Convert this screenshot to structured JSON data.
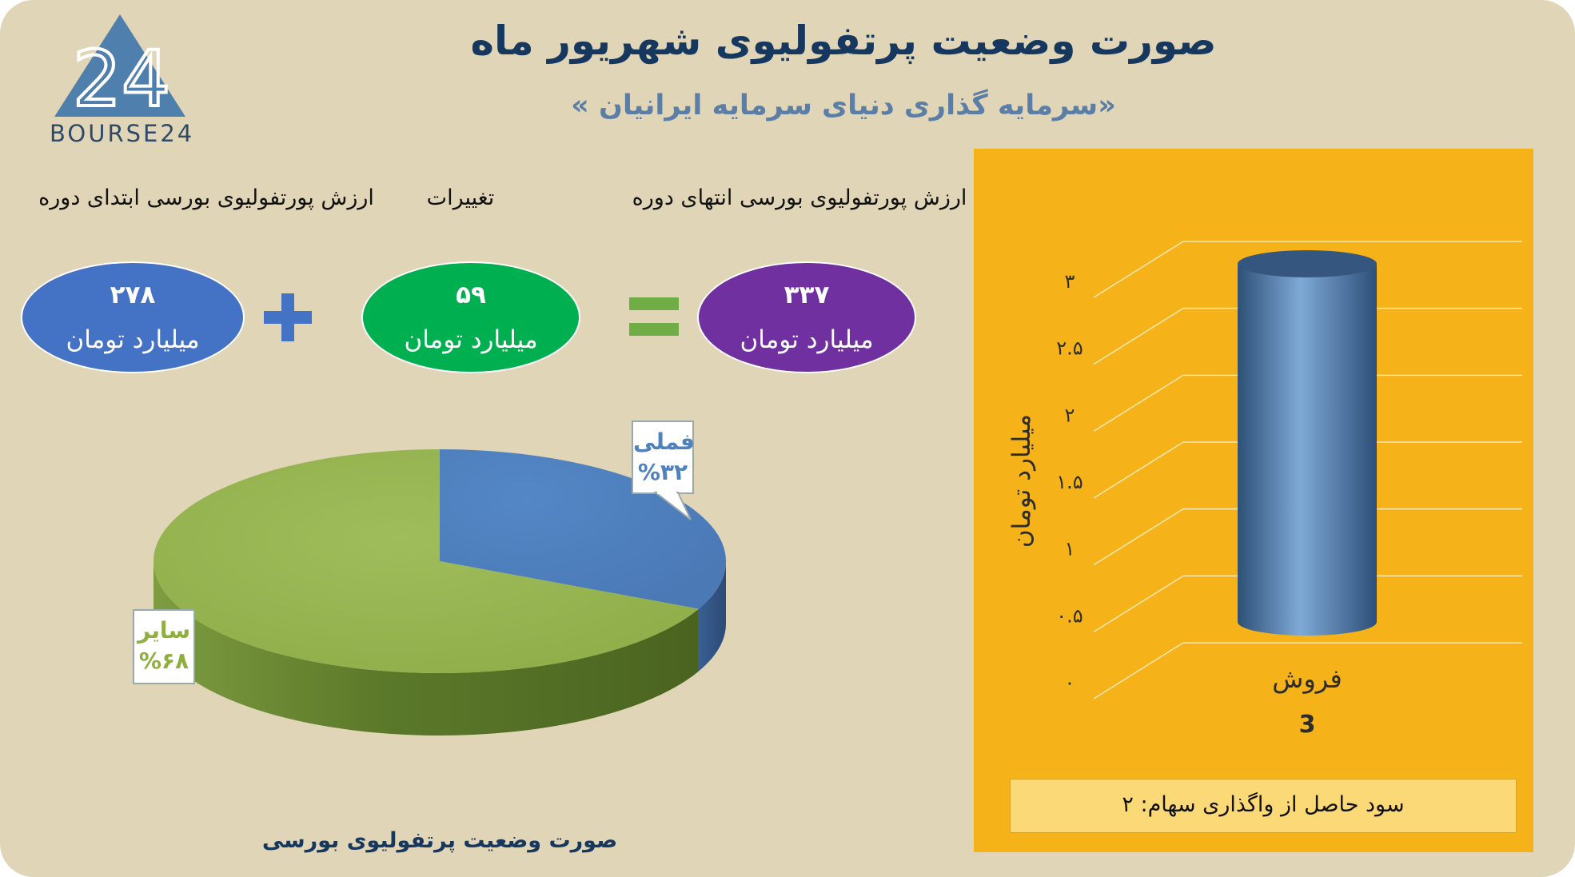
{
  "title": "صورت وضعیت پرتفولیوی شهریور ماه",
  "subtitle": "«سرمایه گذاری دنیای سرمایه ایرانیان »",
  "logo": {
    "text": "BOURSE24",
    "mark": "24"
  },
  "summary": {
    "start_label": "ارزش پورتفولیوی بورسی ابتدای دوره",
    "change_label": "تغییرات",
    "end_label": "ارزش پورتفولیوی بورسی انتهای دوره",
    "start_value": "۲۷۸",
    "change_value": "۵۹",
    "end_value": "۳۳۷",
    "unit": "میلیارد تومان",
    "plus_icon": "plus-icon",
    "equals_icon": "equals-icon"
  },
  "colors": {
    "background": "#e1d5b8",
    "title": "#16375e",
    "start_oval": "#4472c4",
    "change_oval": "#00b050",
    "end_oval": "#7030a0",
    "pie_fameli": "#4f81bd",
    "pie_sayer": "#9bbb59",
    "bar_panel": "#f5b319"
  },
  "chart_data": [
    {
      "type": "pie",
      "title": "صورت وضعیت پرتفولیوی بورسی",
      "labels": [
        "فملی",
        "سایر"
      ],
      "values": [
        32,
        68
      ],
      "data_labels": [
        "%۳۲",
        "%۶۸"
      ],
      "style": "3d"
    },
    {
      "type": "bar",
      "style": "3d-cylinder",
      "categories": [
        "فروش"
      ],
      "values": [
        3
      ],
      "data_labels": [
        "3"
      ],
      "ylabel": "میلیارد تومان",
      "ylim": [
        0,
        3
      ],
      "yticks": [
        "۰",
        "۰.۵",
        "۱",
        "۱.۵",
        "۲",
        "۲.۵",
        "۳"
      ],
      "grid": true,
      "footer": "سود حاصل از واگذاری سهام: ۲"
    }
  ]
}
